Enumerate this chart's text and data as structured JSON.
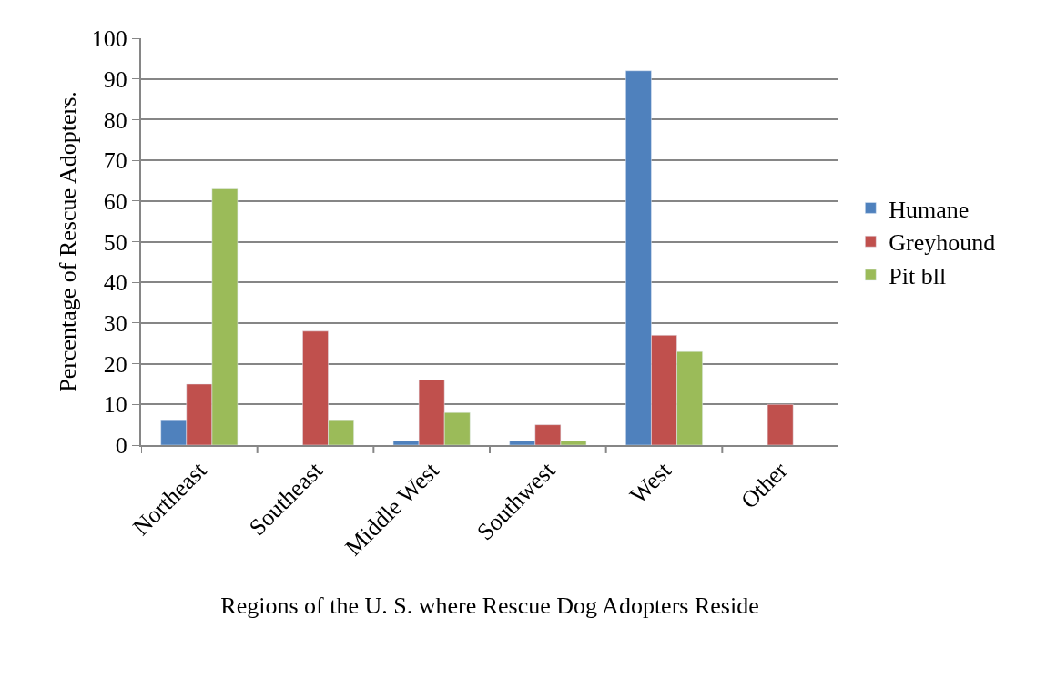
{
  "chart_data": {
    "type": "bar",
    "xlabel": "Regions of the U. S. where Rescue Dog Adopters Reside",
    "ylabel": "Percentage of Rescue Adopters.",
    "categories": [
      "Northeast",
      "Southeast",
      "Middle West",
      "Southwest",
      "West",
      "Other"
    ],
    "series": [
      {
        "name": "Humane",
        "color": "#4f81bd",
        "values": [
          6,
          null,
          1,
          1,
          92,
          null
        ]
      },
      {
        "name": "Greyhound",
        "color": "#c0504d",
        "values": [
          15,
          28,
          16,
          5,
          27,
          10
        ]
      },
      {
        "name": "Pit bll",
        "color": "#9bbb59",
        "values": [
          63,
          6,
          8,
          1,
          23,
          null
        ]
      }
    ],
    "ylim": [
      0,
      100
    ],
    "yticks": [
      0,
      10,
      20,
      30,
      40,
      50,
      60,
      70,
      80,
      90,
      100
    ],
    "grid": "y",
    "legend": "right"
  }
}
